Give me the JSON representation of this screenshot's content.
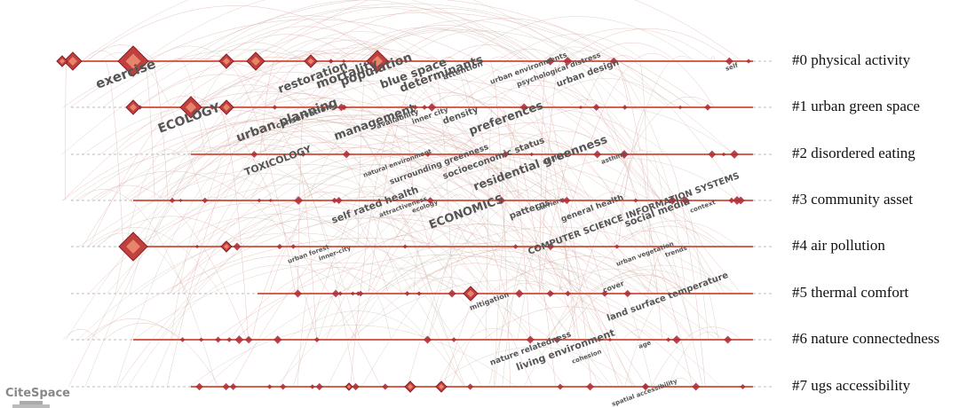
{
  "clusters": [
    {
      "label": "#0 physical activity"
    },
    {
      "label": "#1 urban green space"
    },
    {
      "label": "#2 disordered eating"
    },
    {
      "label": "#3 community asset"
    },
    {
      "label": "#4 air pollution"
    },
    {
      "label": "#5 thermal comfort"
    },
    {
      "label": "#6 nature connectedness"
    },
    {
      "label": "#7 ugs accessibility"
    }
  ],
  "keywords": [
    "exercise",
    "restoration",
    "mortality",
    "population",
    "blue space",
    "determinants",
    "attention",
    "urban environments",
    "psychological distress",
    "urban design",
    "self",
    "ECOLOGY",
    "urban planning",
    "conservation",
    "management",
    "availability",
    "inner city",
    "density",
    "preferences",
    "TOXICOLOGY",
    "natural environment",
    "surrounding greenness",
    "socioeconomic status",
    "residential greenness",
    "anxiety",
    "asthma",
    "COMPUTER SCIENCE INFORMATION SYSTEMS",
    "self rated health",
    "attractiveness",
    "ecology",
    "ECONOMICS",
    "patterns",
    "barriers",
    "general health",
    "social media",
    "context",
    "urban forest",
    "inner-city",
    "urban vegetation",
    "trends",
    "mitigation",
    "cover",
    "land surface temperature",
    "nature relatedness",
    "living environment",
    "cohesion",
    "age",
    "spatial accessibility"
  ],
  "logo": "CiteSpace"
}
